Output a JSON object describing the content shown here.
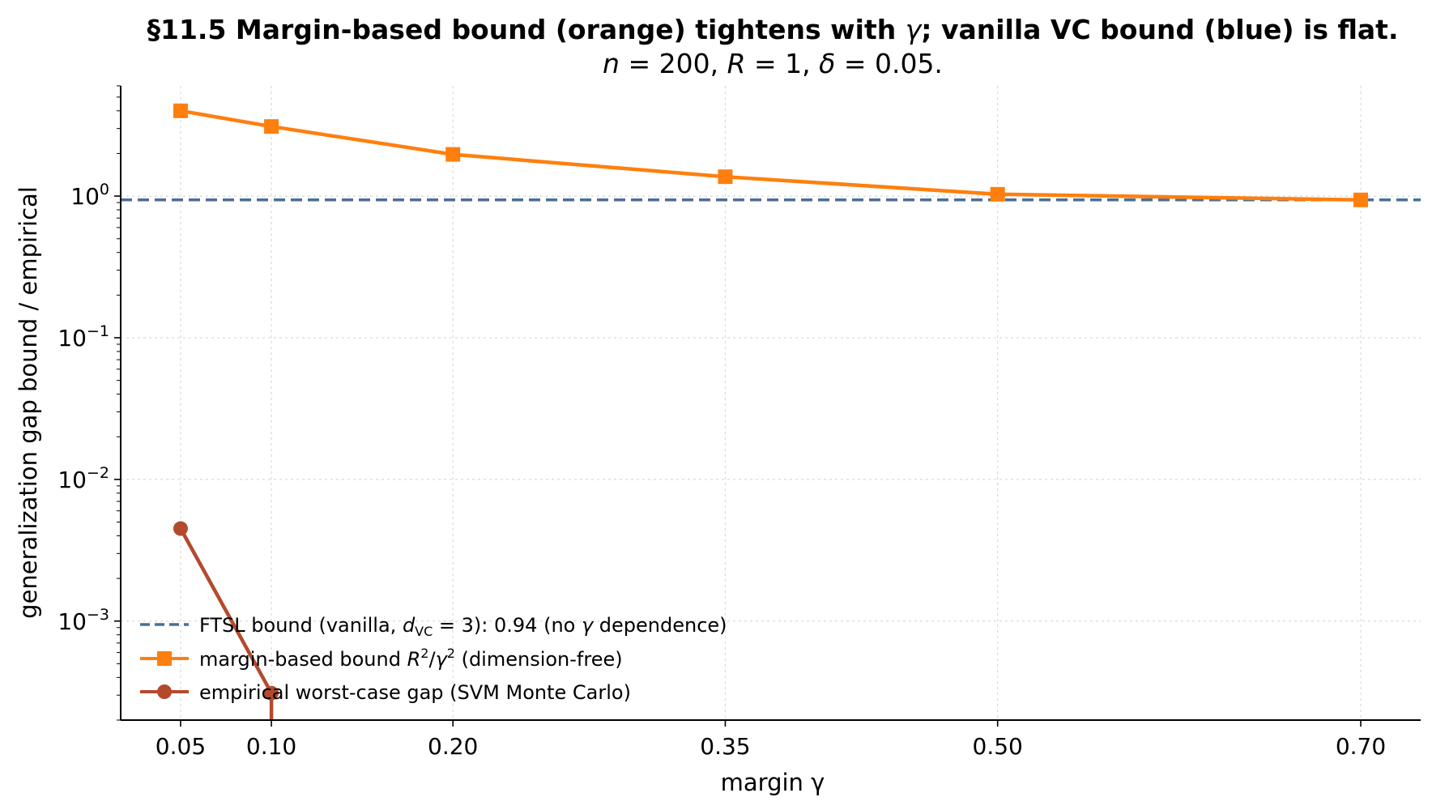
{
  "chart_data": {
    "type": "line",
    "title": {
      "line1_prefix": "§11.5  Margin-based bound (orange) tightens with ",
      "line1_gamma": "γ",
      "line1_suffix": "; vanilla VC bound (blue) is flat.",
      "line2_n": "n",
      "line2_n_val": " = 200, ",
      "line2_R": "R",
      "line2_R_val": " = 1, ",
      "line2_delta": "δ",
      "line2_delta_val": " = 0.05."
    },
    "xlabel": "margin γ",
    "ylabel": "generalization gap bound / empirical",
    "yscale": "log",
    "xlim": [
      0.017,
      0.733
    ],
    "ylim": [
      0.0002,
      6.0
    ],
    "x_ticks": [
      0.05,
      0.1,
      0.2,
      0.35,
      0.5,
      0.7
    ],
    "x_tick_labels": [
      "0.05",
      "0.10",
      "0.20",
      "0.35",
      "0.50",
      "0.70"
    ],
    "y_ticks": [
      1,
      0.1,
      0.01,
      0.001
    ],
    "y_tick_labels": [
      {
        "base": "10",
        "exp": "0"
      },
      {
        "base": "10",
        "exp": "−1"
      },
      {
        "base": "10",
        "exp": "−2"
      },
      {
        "base": "10",
        "exp": "−3"
      }
    ],
    "grid": true,
    "legend_position": "lower-left",
    "colors": {
      "vc": "#4a6f95",
      "margin": "#ff7f0e",
      "empirical": "#b34a2e",
      "axis": "#000000"
    },
    "series": [
      {
        "key": "vc",
        "style": "dashed",
        "marker": "none",
        "x": [
          0.017,
          0.733
        ],
        "values": [
          0.94,
          0.94
        ],
        "legend": {
          "prefix": "FTSL bound (vanilla, ",
          "d": "d",
          "d_sub": "VC",
          "mid": " = 3): 0.94  (no ",
          "gamma": "γ",
          "suffix": " dependence)"
        }
      },
      {
        "key": "margin",
        "style": "solid",
        "marker": "square",
        "x": [
          0.05,
          0.1,
          0.2,
          0.35,
          0.5,
          0.7
        ],
        "values": [
          4.0,
          3.1,
          1.97,
          1.37,
          1.03,
          0.94
        ],
        "legend": {
          "prefix": "margin-based bound  ",
          "R": "R",
          "R_exp": "2",
          "slash": "/",
          "gamma": "γ",
          "g_exp": "2",
          "suffix": " (dimension-free)"
        }
      },
      {
        "key": "empirical",
        "style": "solid",
        "marker": "circle",
        "x": [
          0.05,
          0.1
        ],
        "values": [
          0.0045,
          0.00031
        ],
        "tail_to_bottom_at_x": 0.1,
        "legend": {
          "text": "empirical worst-case gap (SVM Monte Carlo)"
        }
      }
    ]
  }
}
